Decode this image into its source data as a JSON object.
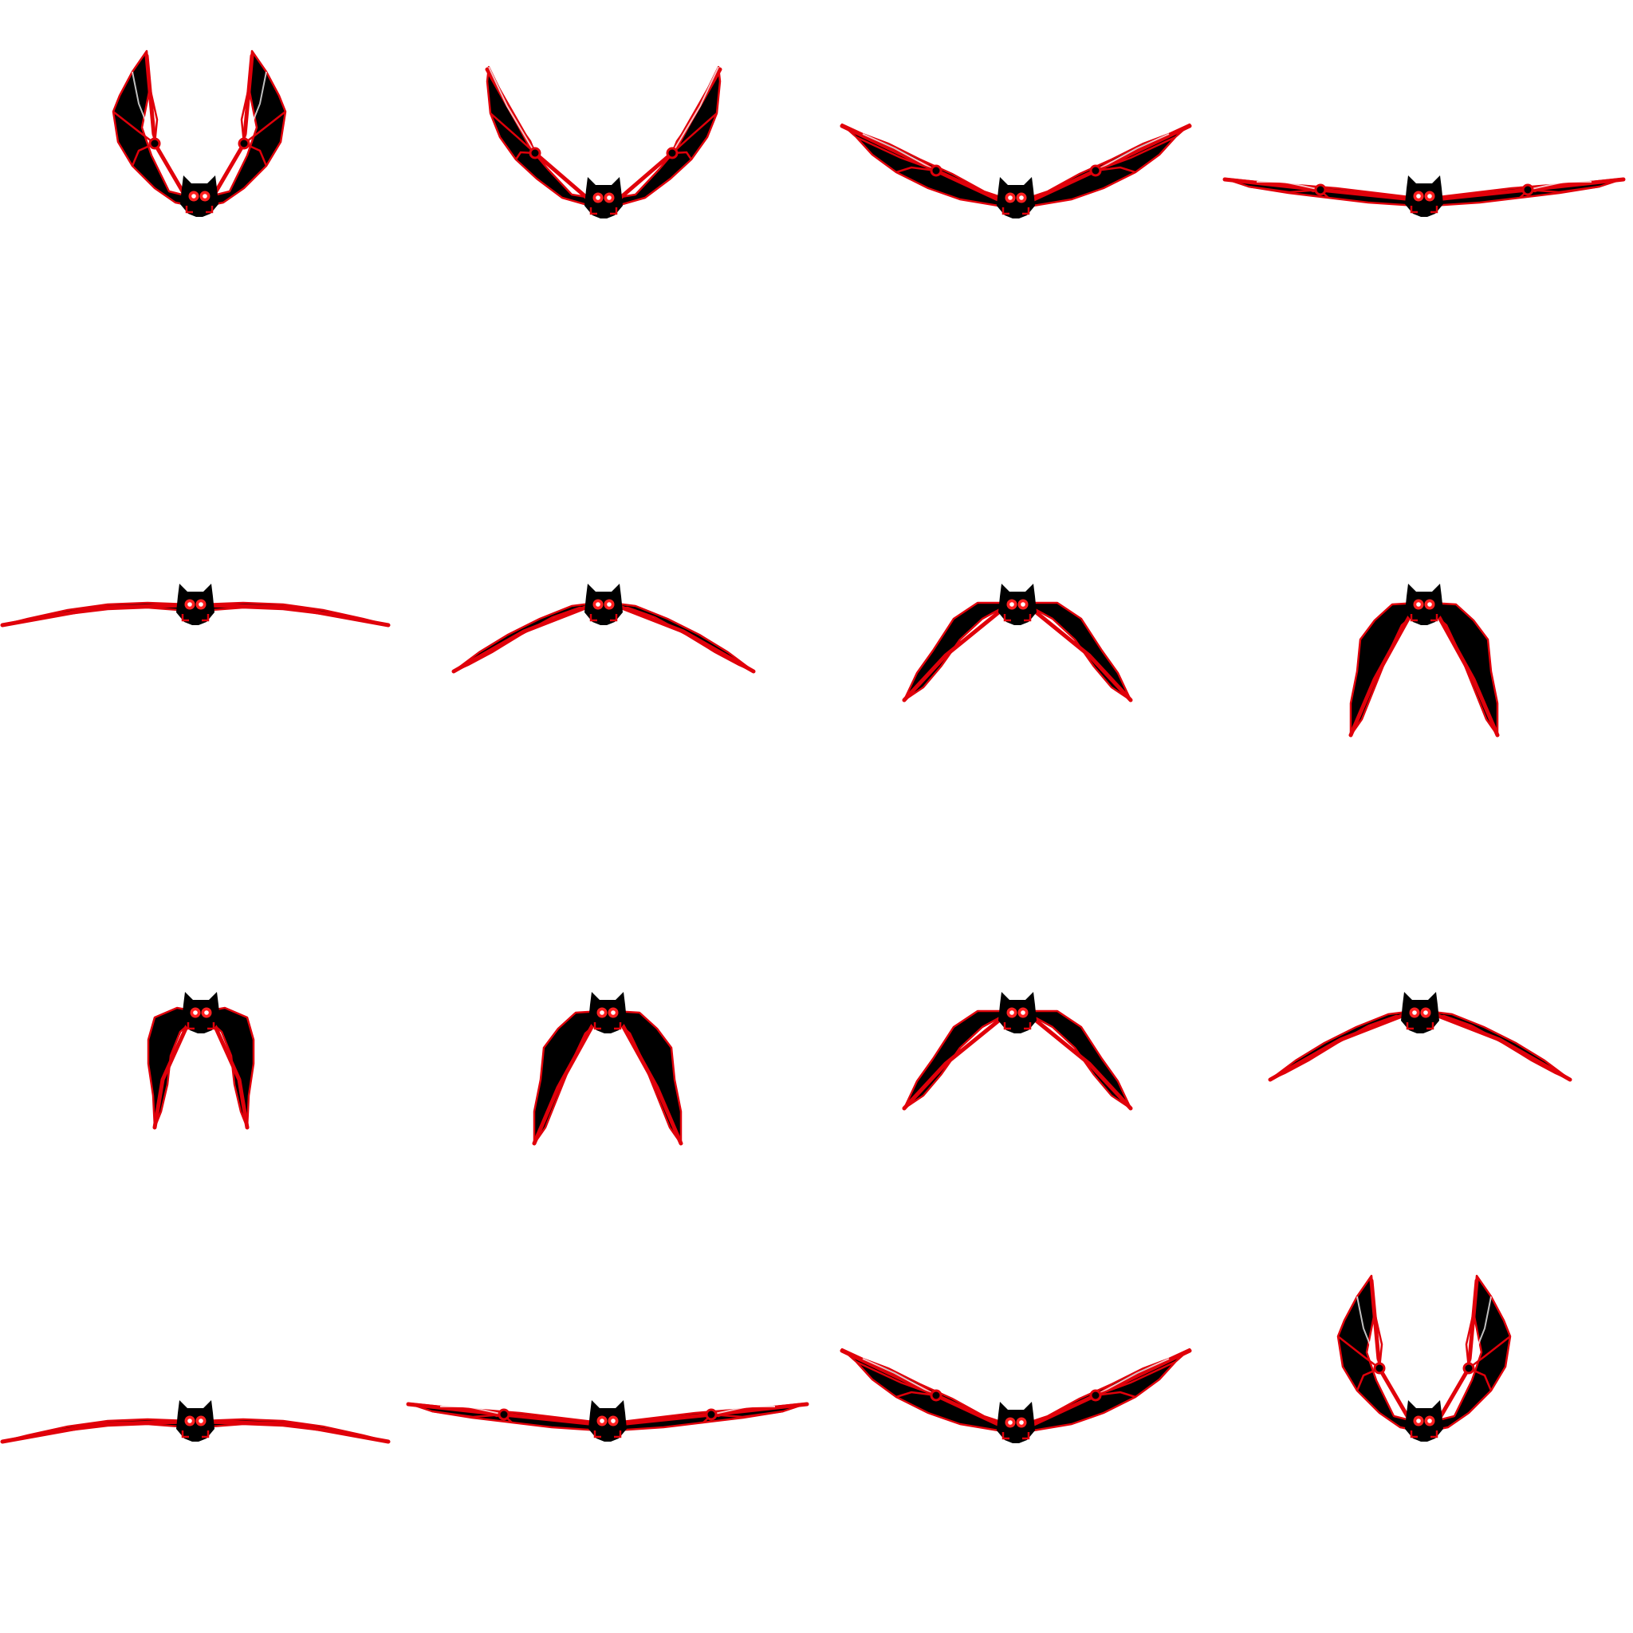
{
  "sprite_sheet": {
    "kind": "bat flight animation",
    "columns": 4,
    "rows": 4,
    "background": "#ffffff",
    "colors": {
      "body": "#000000",
      "veins": "#e0000a",
      "eye_glow": "#ff2020",
      "eye_core": "#ffffff",
      "highlight": "#ffffff"
    },
    "frames": [
      {
        "index": 1,
        "pose": "wings-up-tight",
        "veined": true
      },
      {
        "index": 2,
        "pose": "wings-up",
        "veined": true
      },
      {
        "index": 3,
        "pose": "wings-raised",
        "veined": true
      },
      {
        "index": 4,
        "pose": "wings-level",
        "veined": true
      },
      {
        "index": 5,
        "pose": "wings-flat",
        "veined": false
      },
      {
        "index": 6,
        "pose": "wings-angled",
        "veined": false
      },
      {
        "index": 7,
        "pose": "wings-down",
        "veined": false
      },
      {
        "index": 8,
        "pose": "wings-down-tight",
        "veined": false
      },
      {
        "index": 9,
        "pose": "wings-folded",
        "veined": false
      },
      {
        "index": 10,
        "pose": "wings-down-tight",
        "veined": false
      },
      {
        "index": 11,
        "pose": "wings-down",
        "veined": false
      },
      {
        "index": 12,
        "pose": "wings-angled",
        "veined": false
      },
      {
        "index": 13,
        "pose": "wings-flat",
        "veined": false
      },
      {
        "index": 14,
        "pose": "wings-level",
        "veined": true
      },
      {
        "index": 15,
        "pose": "wings-raised",
        "veined": true
      },
      {
        "index": 16,
        "pose": "wings-up-tight",
        "veined": true
      }
    ]
  }
}
